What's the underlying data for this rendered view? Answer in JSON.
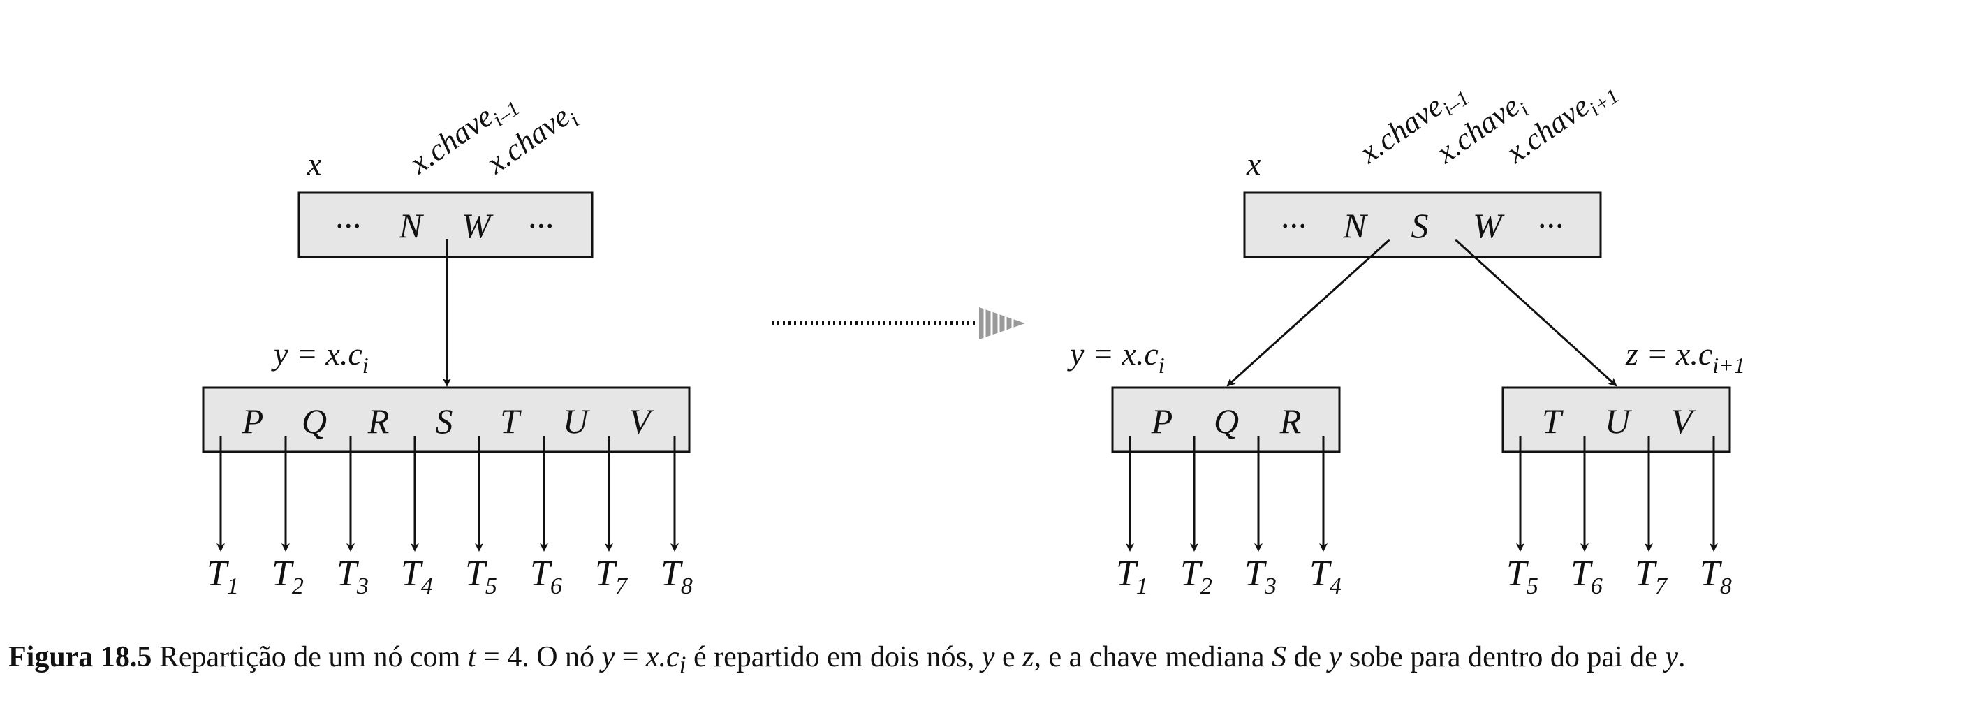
{
  "left": {
    "x_label": "x",
    "key_label_1": {
      "base": "x.chave",
      "sub": "i–1"
    },
    "key_label_2": {
      "base": "x.chave",
      "sub": "i"
    },
    "parent_keys": [
      "···",
      "N",
      "W",
      "···"
    ],
    "y_label": {
      "base": "y = x.c",
      "sub": "i"
    },
    "child_keys": [
      "P",
      "Q",
      "R",
      "S",
      "T",
      "U",
      "V"
    ],
    "subtrees": [
      {
        "base": "T",
        "sub": "1"
      },
      {
        "base": "T",
        "sub": "2"
      },
      {
        "base": "T",
        "sub": "3"
      },
      {
        "base": "T",
        "sub": "4"
      },
      {
        "base": "T",
        "sub": "5"
      },
      {
        "base": "T",
        "sub": "6"
      },
      {
        "base": "T",
        "sub": "7"
      },
      {
        "base": "T",
        "sub": "8"
      }
    ]
  },
  "right": {
    "x_label": "x",
    "key_label_1": {
      "base": "x.chave",
      "sub": "i–1"
    },
    "key_label_2": {
      "base": "x.chave",
      "sub": "i"
    },
    "key_label_3": {
      "base": "x.chave",
      "sub": "i+1"
    },
    "parent_keys": [
      "···",
      "N",
      "S",
      "W",
      "···"
    ],
    "y_label": {
      "base": "y = x.c",
      "sub": "i"
    },
    "z_label": {
      "base": "z = x.c",
      "sub": "i+1"
    },
    "y_keys": [
      "P",
      "Q",
      "R"
    ],
    "z_keys": [
      "T",
      "U",
      "V"
    ],
    "y_subtrees": [
      {
        "base": "T",
        "sub": "1"
      },
      {
        "base": "T",
        "sub": "2"
      },
      {
        "base": "T",
        "sub": "3"
      },
      {
        "base": "T",
        "sub": "4"
      }
    ],
    "z_subtrees": [
      {
        "base": "T",
        "sub": "5"
      },
      {
        "base": "T",
        "sub": "6"
      },
      {
        "base": "T",
        "sub": "7"
      },
      {
        "base": "T",
        "sub": "8"
      }
    ]
  },
  "caption": {
    "label": "Figura 18.5",
    "part1": " Repartição de um nó com ",
    "t_var": "t",
    "part2": " = 4. O nó ",
    "y_expr": "y",
    "part3": " = ",
    "xc": "x.c",
    "xc_sub": "i",
    "part4": " é repartido em dois nós, ",
    "y2": "y",
    "part5": " e ",
    "z": "z",
    "part6": ", e a chave mediana ",
    "S": "S",
    "part7": " de ",
    "y3": "y",
    "part8": " sobe para dentro do pai de ",
    "y4": "y",
    "part9": "."
  }
}
